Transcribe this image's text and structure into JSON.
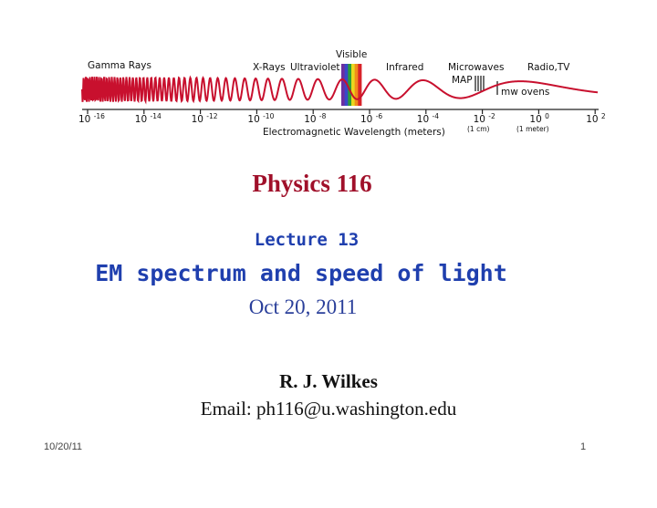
{
  "spectrum": {
    "regions": {
      "gamma": "Gamma Rays",
      "xray": "X-Rays",
      "uv": "Ultraviolet",
      "visible": "Visible",
      "infrared": "Infrared",
      "microwaves": "Microwaves",
      "map": "MAP",
      "radio": "Radio,TV",
      "mw_ovens": "mw ovens"
    },
    "axis_title": "Electromagnetic Wavelength (meters)",
    "ticks": [
      {
        "base": "10",
        "exp": "-16"
      },
      {
        "base": "10",
        "exp": "-14"
      },
      {
        "base": "10",
        "exp": "-12"
      },
      {
        "base": "10",
        "exp": "-10"
      },
      {
        "base": "10",
        "exp": "-8"
      },
      {
        "base": "10",
        "exp": "-6"
      },
      {
        "base": "10",
        "exp": "-4"
      },
      {
        "base": "10",
        "exp": "-2"
      },
      {
        "base": "10",
        "exp": "0"
      },
      {
        "base": "10",
        "exp": "2"
      }
    ],
    "tick_notes": {
      "cm": "(1 cm)",
      "meter": "(1 meter)"
    },
    "colors": {
      "wave": "#c8102e",
      "axis": "#222222",
      "visible_band": [
        "#6b2fa0",
        "#3949c8",
        "#2a9d3a",
        "#e8d81e",
        "#f08c1a",
        "#d8232a"
      ]
    }
  },
  "slide": {
    "course_title": "Physics 116",
    "lecture_number": "Lecture 13",
    "lecture_title": "EM spectrum and speed of light",
    "lecture_date": "Oct 20, 2011",
    "author": "R. J. Wilkes",
    "email": "Email: ph116@u.washington.edu",
    "colors": {
      "course_title": "#a0102a",
      "lecture": "#1f3fae",
      "date": "#2a3f9a"
    }
  },
  "footer": {
    "date": "10/20/11",
    "page": "1"
  }
}
